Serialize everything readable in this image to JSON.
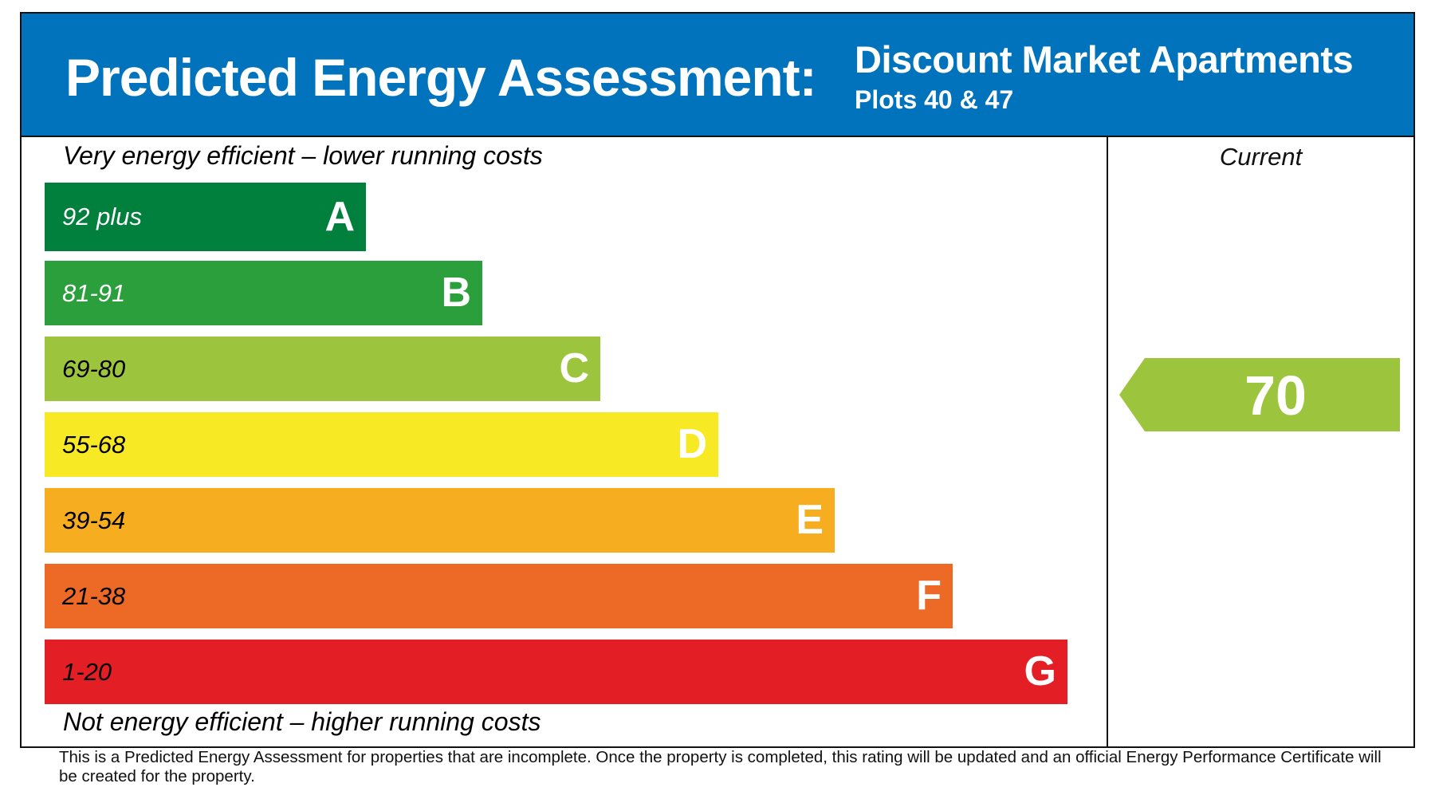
{
  "header": {
    "title": "Predicted Energy Assessment:",
    "development": "Discount Market Apartments",
    "plots": "Plots 40 & 47"
  },
  "chart_data": {
    "type": "bar",
    "top_caption": "Very energy efficient – lower running costs",
    "bottom_caption": "Not energy efficient – higher running costs",
    "bands": [
      {
        "letter": "A",
        "range": "92 plus",
        "color": "#007f3d",
        "text_color": "#ffffff"
      },
      {
        "letter": "B",
        "range": "81-91",
        "color": "#2a9f3b",
        "text_color": "#ffffff"
      },
      {
        "letter": "C",
        "range": "69-80",
        "color": "#9dc43d",
        "text_color": "#000000"
      },
      {
        "letter": "D",
        "range": "55-68",
        "color": "#f8e925",
        "text_color": "#000000"
      },
      {
        "letter": "E",
        "range": "39-54",
        "color": "#f6ad1f",
        "text_color": "#000000"
      },
      {
        "letter": "F",
        "range": "21-38",
        "color": "#ec6a26",
        "text_color": "#000000"
      },
      {
        "letter": "G",
        "range": "1-20",
        "color": "#e31e24",
        "text_color": "#000000"
      }
    ],
    "current": {
      "label": "Current",
      "value": "70",
      "band": "C",
      "color": "#9dc43d"
    }
  },
  "footer": "This is a Predicted Energy Assessment for properties that are incomplete. Once the property is completed, this rating will be updated and an official Energy Performance Certificate will be created for the property."
}
